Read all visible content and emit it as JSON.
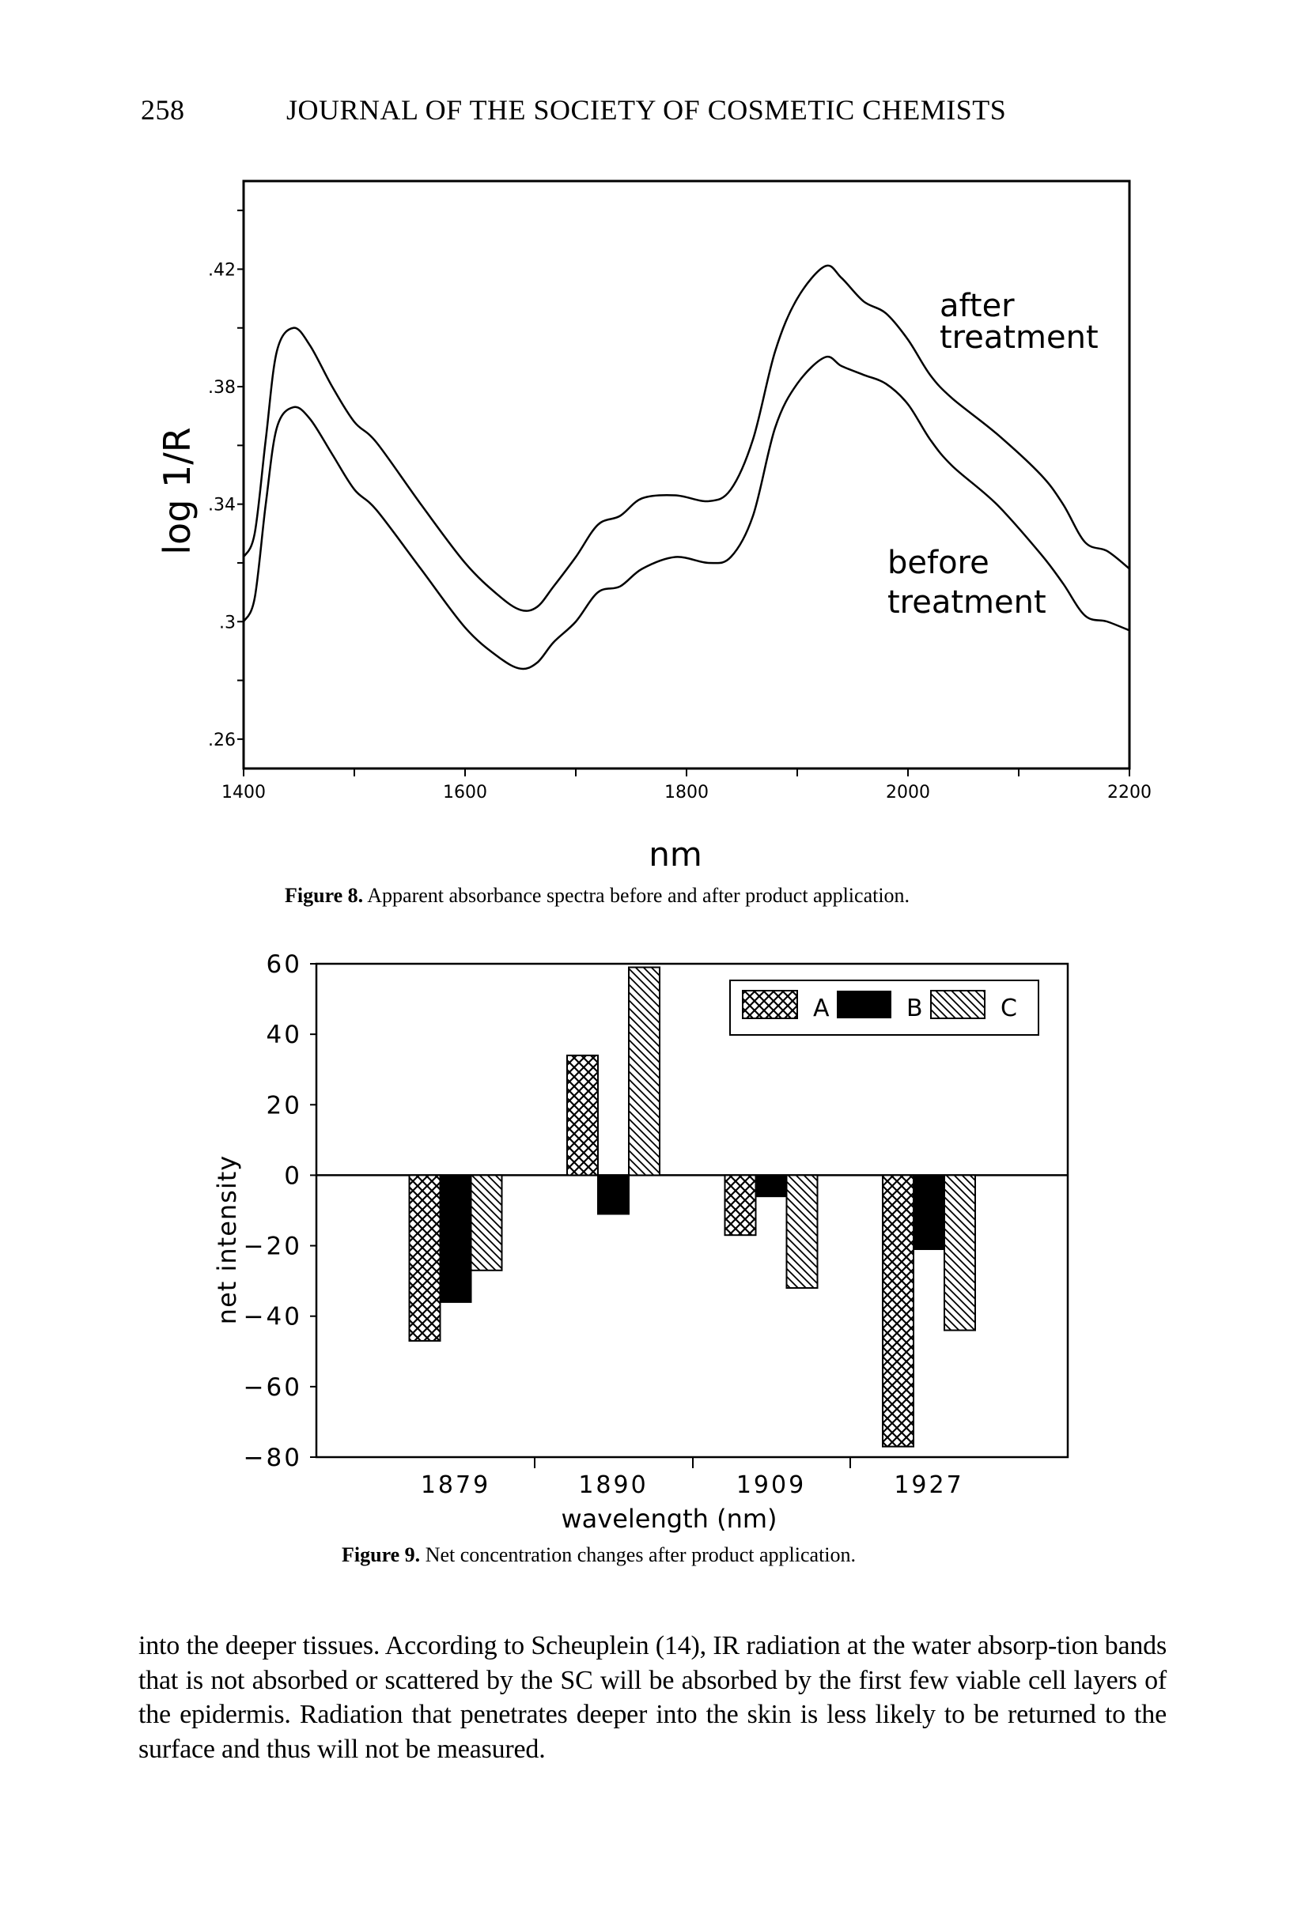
{
  "header": {
    "page_number": "258",
    "journal_title": "JOURNAL OF THE SOCIETY OF COSMETIC CHEMISTS"
  },
  "figure8": {
    "caption_label": "Figure 8.",
    "caption_text": "Apparent absorbance spectra before and after product application.",
    "annotations": {
      "after": [
        "after",
        "treatment"
      ],
      "before": [
        "before",
        "treatment"
      ]
    }
  },
  "figure9": {
    "caption_label": "Figure 9.",
    "caption_text": "Net concentration changes after product application."
  },
  "body_text": "into the deeper tissues. According to Scheuplein (14), IR radiation at the water absorp-tion bands that is not absorbed or scattered by the SC will be absorbed by the first few viable cell layers of the epidermis. Radiation that penetrates deeper into the skin is less likely to be returned to the surface and thus will not be measured.",
  "chart_data": [
    {
      "type": "line",
      "title": "",
      "xlabel": "nm",
      "ylabel": "log 1/R",
      "xlim": [
        1400,
        2200
      ],
      "ylim": [
        0.25,
        0.45
      ],
      "x_ticks": [
        1400,
        1600,
        1800,
        2000,
        2200
      ],
      "x_tick_labels": [
        "1400",
        "1600",
        "1800",
        "2000",
        "2200"
      ],
      "y_ticks": [
        0.26,
        0.3,
        0.34,
        0.38,
        0.42
      ],
      "y_tick_labels": [
        ".26",
        ".3",
        ".34",
        ".38",
        ".42"
      ],
      "grid": false,
      "series": [
        {
          "name": "after treatment",
          "x": [
            1400,
            1410,
            1420,
            1430,
            1445,
            1460,
            1480,
            1500,
            1520,
            1560,
            1600,
            1630,
            1650,
            1665,
            1680,
            1700,
            1720,
            1740,
            1760,
            1790,
            1820,
            1840,
            1860,
            1880,
            1900,
            1925,
            1940,
            1960,
            1980,
            2000,
            2020,
            2040,
            2080,
            2120,
            2140,
            2160,
            2180,
            2200
          ],
          "y": [
            0.322,
            0.33,
            0.362,
            0.392,
            0.4,
            0.394,
            0.38,
            0.368,
            0.361,
            0.34,
            0.32,
            0.309,
            0.304,
            0.305,
            0.312,
            0.322,
            0.333,
            0.336,
            0.342,
            0.343,
            0.341,
            0.345,
            0.362,
            0.392,
            0.41,
            0.421,
            0.417,
            0.409,
            0.405,
            0.396,
            0.384,
            0.376,
            0.364,
            0.35,
            0.34,
            0.327,
            0.324,
            0.318
          ]
        },
        {
          "name": "before treatment",
          "x": [
            1400,
            1410,
            1420,
            1430,
            1445,
            1460,
            1480,
            1500,
            1520,
            1560,
            1600,
            1630,
            1650,
            1665,
            1680,
            1700,
            1720,
            1740,
            1760,
            1790,
            1820,
            1840,
            1860,
            1880,
            1900,
            1925,
            1940,
            1960,
            1980,
            2000,
            2020,
            2040,
            2080,
            2120,
            2140,
            2160,
            2180,
            2200
          ],
          "y": [
            0.3,
            0.308,
            0.34,
            0.366,
            0.373,
            0.369,
            0.357,
            0.345,
            0.338,
            0.318,
            0.298,
            0.288,
            0.284,
            0.286,
            0.293,
            0.3,
            0.31,
            0.312,
            0.318,
            0.322,
            0.32,
            0.322,
            0.336,
            0.366,
            0.381,
            0.39,
            0.387,
            0.384,
            0.381,
            0.374,
            0.362,
            0.353,
            0.34,
            0.323,
            0.313,
            0.302,
            0.3,
            0.297
          ]
        }
      ]
    },
    {
      "type": "bar",
      "title": "",
      "xlabel": "wavelength (nm)",
      "ylabel": "net intensity",
      "categories": [
        "1879",
        "1890",
        "1909",
        "1927"
      ],
      "ylim": [
        -80,
        60
      ],
      "y_ticks": [
        -80,
        -60,
        -40,
        -20,
        0,
        20,
        40,
        60
      ],
      "y_tick_labels": [
        "−80",
        "−60",
        "−40",
        "−20",
        "0",
        "20",
        "40",
        "60"
      ],
      "grid": false,
      "legend_position": "top-right",
      "series": [
        {
          "name": "A",
          "pattern": "crosshatch",
          "values": [
            -47,
            34,
            -17,
            -77
          ]
        },
        {
          "name": "B",
          "pattern": "solid",
          "values": [
            -36,
            -11,
            -6,
            -21
          ]
        },
        {
          "name": "C",
          "pattern": "diagonal",
          "values": [
            -27,
            59,
            -32,
            -44
          ]
        }
      ],
      "colors": {
        "ink": "#000000",
        "background": "#ffffff"
      }
    }
  ]
}
